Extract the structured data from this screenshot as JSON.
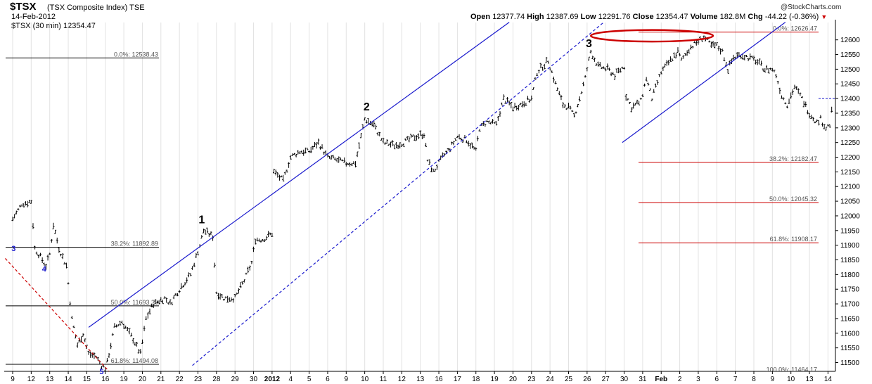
{
  "header": {
    "symbol": "$TSX",
    "index_name": "(TSX Composite Index)  TSE",
    "date": "14-Feb-2012",
    "series_label": "$TSX (30 min) 12354.47",
    "open_label": "Open",
    "open": "12377.74",
    "high_label": "High",
    "high": "12387.69",
    "low_label": "Low",
    "low": "12291.76",
    "close_label": "Close",
    "close": "12354.47",
    "volume_label": "Volume",
    "volume": "182.8M",
    "chg_label": "Chg",
    "chg": "-44.22 (-0.36%)",
    "brand": "@StockCharts.com"
  },
  "colors": {
    "price": "#000000",
    "channel": "#1a1acd",
    "fib_black": "#000000",
    "fib_red": "#cc0000",
    "highlight": "#cc0000",
    "wave_label_blue": "#1a1acd",
    "axis_text": "#000000"
  },
  "chart_data": {
    "type": "line",
    "title": "$TSX (TSX Composite Index) TSE",
    "interval": "30 min",
    "y_axis": {
      "ylim": [
        11470,
        12640
      ],
      "ticks": [
        11500,
        11550,
        11600,
        11650,
        11700,
        11750,
        11800,
        11850,
        11900,
        11950,
        12000,
        12050,
        12100,
        12150,
        12200,
        12250,
        12300,
        12350,
        12400,
        12450,
        12500,
        12550,
        12600
      ],
      "position": "right"
    },
    "x_axis": {
      "labels": [
        "9",
        "12",
        "13",
        "14",
        "15",
        "16",
        "19",
        "20",
        "21",
        "22",
        "23",
        "28",
        "29",
        "30",
        "2012",
        "4",
        "5",
        "6",
        "9",
        "10",
        "11",
        "12",
        "13",
        "16",
        "17",
        "18",
        "19",
        "20",
        "23",
        "24",
        "25",
        "26",
        "27",
        "30",
        "31",
        "Feb",
        "2",
        "3",
        "6",
        "7",
        "8",
        "9",
        "10",
        "13",
        "14"
      ]
    },
    "grid": "vertical",
    "price_path": [
      [
        0,
        11990
      ],
      [
        0.5,
        12040
      ],
      [
        1.0,
        12050
      ],
      [
        1.2,
        11890
      ],
      [
        1.5,
        11860
      ],
      [
        1.8,
        11830
      ],
      [
        2.0,
        11870
      ],
      [
        2.2,
        11970
      ],
      [
        2.5,
        11890
      ],
      [
        2.9,
        11830
      ],
      [
        3.2,
        11650
      ],
      [
        3.5,
        11560
      ],
      [
        3.8,
        11600
      ],
      [
        4.1,
        11530
      ],
      [
        4.5,
        11520
      ],
      [
        4.8,
        11490
      ],
      [
        5.0,
        11480
      ],
      [
        5.1,
        11500
      ],
      [
        5.5,
        11620
      ],
      [
        5.9,
        11640
      ],
      [
        6.2,
        11610
      ],
      [
        6.5,
        11580
      ],
      [
        6.9,
        11530
      ],
      [
        7.2,
        11650
      ],
      [
        7.6,
        11700
      ],
      [
        8.2,
        11720
      ],
      [
        8.5,
        11700
      ],
      [
        9.1,
        11760
      ],
      [
        9.6,
        11800
      ],
      [
        10.1,
        11900
      ],
      [
        10.3,
        11950
      ],
      [
        10.8,
        11930
      ],
      [
        11.0,
        11740
      ],
      [
        11.4,
        11720
      ],
      [
        12.0,
        11720
      ],
      [
        12.5,
        11780
      ],
      [
        12.9,
        11840
      ],
      [
        13.1,
        11920
      ],
      [
        13.5,
        11920
      ],
      [
        14.0,
        11940
      ],
      [
        14.1,
        12150
      ],
      [
        14.6,
        12120
      ],
      [
        15.0,
        12200
      ],
      [
        15.5,
        12220
      ],
      [
        16.0,
        12220
      ],
      [
        16.5,
        12250
      ],
      [
        17.0,
        12200
      ],
      [
        17.5,
        12190
      ],
      [
        18.0,
        12180
      ],
      [
        18.5,
        12180
      ],
      [
        19.0,
        12330
      ],
      [
        19.5,
        12310
      ],
      [
        20.0,
        12250
      ],
      [
        20.6,
        12240
      ],
      [
        21.1,
        12250
      ],
      [
        21.7,
        12270
      ],
      [
        22.2,
        12280
      ],
      [
        22.4,
        12190
      ],
      [
        22.7,
        12150
      ],
      [
        23.2,
        12200
      ],
      [
        23.6,
        12230
      ],
      [
        24.0,
        12270
      ],
      [
        24.5,
        12260
      ],
      [
        25.0,
        12220
      ],
      [
        25.2,
        12300
      ],
      [
        25.6,
        12320
      ],
      [
        26.1,
        12310
      ],
      [
        26.5,
        12400
      ],
      [
        27.0,
        12370
      ],
      [
        27.4,
        12380
      ],
      [
        28.0,
        12400
      ],
      [
        28.3,
        12490
      ],
      [
        28.9,
        12530
      ],
      [
        29.3,
        12450
      ],
      [
        29.7,
        12380
      ],
      [
        30.0,
        12370
      ],
      [
        30.3,
        12340
      ],
      [
        30.6,
        12400
      ],
      [
        30.9,
        12470
      ],
      [
        31.2,
        12560
      ],
      [
        31.6,
        12510
      ],
      [
        32.1,
        12500
      ],
      [
        32.5,
        12480
      ],
      [
        33.0,
        12510
      ],
      [
        33.1,
        12410
      ],
      [
        33.4,
        12370
      ],
      [
        33.9,
        12390
      ],
      [
        34.2,
        12470
      ],
      [
        34.5,
        12400
      ],
      [
        35.0,
        12490
      ],
      [
        35.5,
        12530
      ],
      [
        35.9,
        12560
      ],
      [
        36.1,
        12530
      ],
      [
        36.5,
        12570
      ],
      [
        36.9,
        12590
      ],
      [
        37.3,
        12610
      ],
      [
        37.7,
        12580
      ],
      [
        38.0,
        12580
      ],
      [
        38.3,
        12560
      ],
      [
        38.6,
        12500
      ],
      [
        38.9,
        12540
      ],
      [
        39.3,
        12550
      ],
      [
        39.7,
        12540
      ],
      [
        40.1,
        12530
      ],
      [
        40.6,
        12500
      ],
      [
        41.0,
        12500
      ],
      [
        41.2,
        12480
      ],
      [
        41.5,
        12410
      ],
      [
        41.8,
        12380
      ],
      [
        42.2,
        12440
      ],
      [
        42.6,
        12400
      ],
      [
        43.0,
        12350
      ],
      [
        43.4,
        12320
      ],
      [
        43.6,
        12330
      ],
      [
        43.9,
        12300
      ],
      [
        44.1,
        12310
      ],
      [
        44.2,
        12354
      ]
    ],
    "annotations": {
      "channel_lines": [
        {
          "name": "upper-channel",
          "style": "solid",
          "points": [
            [
              4.1,
              11620
            ],
            [
              26.8,
              12660
            ]
          ]
        },
        {
          "name": "lower-channel",
          "style": "dashed",
          "points": [
            [
              9.7,
              11490
            ],
            [
              31.9,
              12660
            ]
          ]
        },
        {
          "name": "feb-channel",
          "style": "solid",
          "points": [
            [
              32.9,
              12250
            ],
            [
              41.7,
              12660
            ]
          ]
        },
        {
          "name": "red-trendline",
          "style": "dashed",
          "points": [
            [
              -0.4,
              11855
            ],
            [
              5.2,
              11470
            ]
          ]
        }
      ],
      "wave_labels": [
        {
          "text": "3",
          "x": 0.05,
          "y": 11880,
          "color": "blue"
        },
        {
          "text": "4",
          "x": 1.7,
          "y": 11810,
          "color": "blue"
        },
        {
          "text": "5",
          "x": 4.8,
          "y": 11460,
          "color": "blue"
        },
        {
          "text": "1",
          "x": 10.2,
          "y": 11975,
          "color": "black"
        },
        {
          "text": "2",
          "x": 19.1,
          "y": 12360,
          "color": "black"
        },
        {
          "text": "3",
          "x": 31.1,
          "y": 12575,
          "color": "black"
        }
      ],
      "fib_levels_left": [
        {
          "label": "0.0%: 12538.43",
          "value": 12538.43
        },
        {
          "label": "38.2%: 11892.89",
          "value": 11892.89
        },
        {
          "label": "50.0%: 11693.30",
          "value": 11693.3
        },
        {
          "label": "61.8%: 11494.08",
          "value": 11494.08
        }
      ],
      "fib_levels_right": [
        {
          "label": "0.0%: 12626.47",
          "value": 12626.47
        },
        {
          "label": "38.2%: 12182.47",
          "value": 12182.47
        },
        {
          "label": "50.0%: 12045.32",
          "value": 12045.32
        },
        {
          "label": "61.8%: 11908.17",
          "value": 11908.17
        },
        {
          "label": "100.0%: 11464.17",
          "value": 11464.17
        }
      ],
      "highlight_ellipse": {
        "center_x": 34.5,
        "center_y": 12614,
        "span_days": 6.6,
        "span_points": 30
      },
      "resistance_marker": {
        "value": 12400
      }
    }
  }
}
